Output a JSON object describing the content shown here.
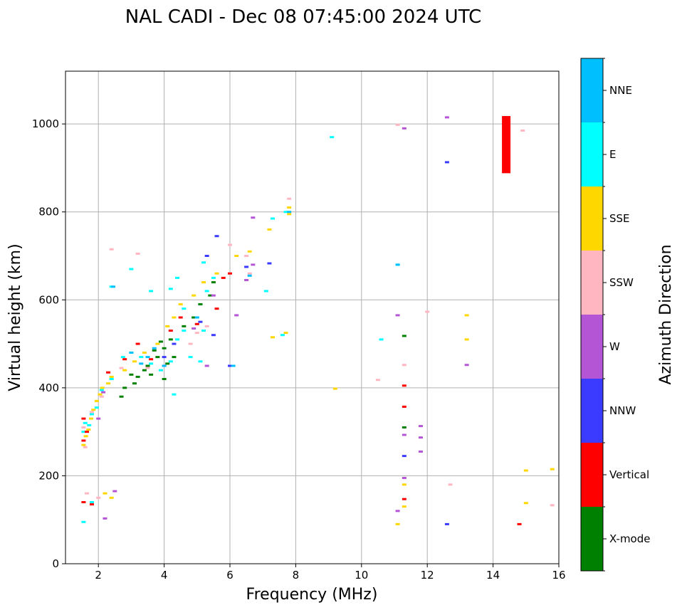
{
  "chart_data": {
    "type": "scatter",
    "title": "NAL CADI - Dec 08 07:45:00 2024 UTC",
    "xlabel": "Frequency (MHz)",
    "ylabel": "Virtual height (km)",
    "xlim": [
      1,
      16
    ],
    "ylim": [
      0,
      1120
    ],
    "xticks": [
      2,
      4,
      6,
      8,
      10,
      12,
      14,
      16
    ],
    "yticks": [
      0,
      200,
      400,
      600,
      800,
      1000
    ],
    "grid": true,
    "colorbar": {
      "label": "Azimuth Direction",
      "categories": [
        {
          "name": "X-mode",
          "color": "#008000"
        },
        {
          "name": "Vertical",
          "color": "#ff0000"
        },
        {
          "name": "NNW",
          "color": "#3b3bff"
        },
        {
          "name": "W",
          "color": "#b455d6"
        },
        {
          "name": "SSW",
          "color": "#ffb6c1"
        },
        {
          "name": "SSE",
          "color": "#ffd700"
        },
        {
          "name": "E",
          "color": "#00ffff"
        },
        {
          "name": "NNE",
          "color": "#00bfff"
        }
      ]
    },
    "clusters": [
      {
        "category": "SSE",
        "points": [
          [
            1.55,
            270
          ],
          [
            1.62,
            290
          ],
          [
            1.7,
            305
          ],
          [
            1.78,
            330
          ],
          [
            1.85,
            350
          ],
          [
            1.95,
            370
          ],
          [
            2.05,
            385
          ],
          [
            2.12,
            400
          ],
          [
            2.3,
            410
          ],
          [
            2.4,
            425
          ],
          [
            2.8,
            440
          ],
          [
            3.1,
            460
          ],
          [
            3.4,
            480
          ],
          [
            3.8,
            500
          ],
          [
            4.1,
            540
          ],
          [
            4.3,
            560
          ],
          [
            4.5,
            590
          ],
          [
            4.9,
            610
          ],
          [
            5.2,
            640
          ],
          [
            5.6,
            660
          ],
          [
            6.2,
            700
          ],
          [
            6.6,
            710
          ],
          [
            7.2,
            760
          ],
          [
            7.8,
            810
          ],
          [
            7.8,
            795
          ],
          [
            7.7,
            525
          ],
          [
            7.3,
            515
          ],
          [
            2.2,
            160
          ],
          [
            2.4,
            150
          ],
          [
            11.3,
            180
          ],
          [
            11.3,
            130
          ],
          [
            11.1,
            90
          ],
          [
            13.2,
            565
          ],
          [
            13.2,
            510
          ],
          [
            9.2,
            398
          ],
          [
            15.0,
            212
          ],
          [
            15.0,
            138
          ],
          [
            15.8,
            215
          ]
        ]
      },
      {
        "category": "E",
        "points": [
          [
            1.55,
            300
          ],
          [
            1.6,
            320
          ],
          [
            1.72,
            315
          ],
          [
            1.8,
            340
          ],
          [
            1.95,
            355
          ],
          [
            2.1,
            395
          ],
          [
            2.4,
            420
          ],
          [
            2.75,
            470
          ],
          [
            3.0,
            480
          ],
          [
            3.3,
            470
          ],
          [
            3.6,
            455
          ],
          [
            3.9,
            440
          ],
          [
            4.2,
            460
          ],
          [
            4.4,
            510
          ],
          [
            4.6,
            530
          ],
          [
            4.9,
            560
          ],
          [
            5.1,
            590
          ],
          [
            5.3,
            620
          ],
          [
            5.5,
            650
          ],
          [
            5.2,
            685
          ],
          [
            4.6,
            580
          ],
          [
            4.2,
            625
          ],
          [
            4.4,
            650
          ],
          [
            3.6,
            620
          ],
          [
            3.0,
            670
          ],
          [
            2.4,
            630
          ],
          [
            7.7,
            800
          ],
          [
            7.6,
            520
          ],
          [
            7.3,
            785
          ],
          [
            7.1,
            620
          ],
          [
            9.1,
            970
          ],
          [
            11.1,
            680
          ],
          [
            10.6,
            510
          ],
          [
            1.55,
            95
          ],
          [
            1.8,
            140
          ],
          [
            5.1,
            460
          ],
          [
            4.8,
            470
          ],
          [
            5.2,
            530
          ],
          [
            4.3,
            385
          ]
        ]
      },
      {
        "category": "X-mode",
        "points": [
          [
            3.0,
            430
          ],
          [
            3.2,
            425
          ],
          [
            3.4,
            440
          ],
          [
            3.6,
            430
          ],
          [
            3.8,
            470
          ],
          [
            4.0,
            490
          ],
          [
            4.0,
            420
          ],
          [
            4.2,
            510
          ],
          [
            4.3,
            470
          ],
          [
            3.1,
            410
          ],
          [
            2.8,
            400
          ],
          [
            2.7,
            380
          ],
          [
            4.6,
            540
          ],
          [
            4.9,
            560
          ],
          [
            5.1,
            590
          ],
          [
            5.4,
            610
          ],
          [
            5.5,
            640
          ],
          [
            11.3,
            518
          ],
          [
            11.3,
            310
          ],
          [
            3.5,
            450
          ],
          [
            3.9,
            505
          ],
          [
            3.7,
            485
          ],
          [
            4.1,
            455
          ]
        ]
      },
      {
        "category": "Vertical",
        "points": [
          [
            1.55,
            280
          ],
          [
            1.55,
            330
          ],
          [
            1.65,
            300
          ],
          [
            2.3,
            435
          ],
          [
            2.8,
            465
          ],
          [
            3.2,
            500
          ],
          [
            3.6,
            465
          ],
          [
            4.0,
            450
          ],
          [
            4.2,
            530
          ],
          [
            4.5,
            560
          ],
          [
            5.0,
            545
          ],
          [
            5.6,
            580
          ],
          [
            5.8,
            650
          ],
          [
            6.0,
            660
          ],
          [
            11.3,
            405
          ],
          [
            11.3,
            357
          ],
          [
            11.3,
            147
          ],
          [
            14.8,
            90
          ],
          [
            1.55,
            140
          ],
          [
            1.8,
            135
          ]
        ]
      },
      {
        "category": "NNW",
        "points": [
          [
            4.0,
            470
          ],
          [
            4.3,
            500
          ],
          [
            5.1,
            550
          ],
          [
            5.5,
            520
          ],
          [
            6.5,
            675
          ],
          [
            7.2,
            683
          ],
          [
            5.6,
            745
          ],
          [
            11.3,
            245
          ],
          [
            12.6,
            913
          ],
          [
            12.6,
            90
          ],
          [
            6.0,
            450
          ],
          [
            5.3,
            700
          ]
        ]
      },
      {
        "category": "W",
        "points": [
          [
            2.0,
            330
          ],
          [
            2.15,
            390
          ],
          [
            4.9,
            535
          ],
          [
            5.5,
            610
          ],
          [
            6.2,
            565
          ],
          [
            6.5,
            645
          ],
          [
            6.7,
            680
          ],
          [
            6.7,
            787
          ],
          [
            11.1,
            565
          ],
          [
            11.3,
            990
          ],
          [
            12.6,
            1015
          ],
          [
            11.3,
            293
          ],
          [
            11.3,
            195
          ],
          [
            11.8,
            313
          ],
          [
            11.8,
            287
          ],
          [
            11.8,
            255
          ],
          [
            13.2,
            452
          ],
          [
            11.1,
            120
          ],
          [
            5.3,
            450
          ],
          [
            2.2,
            103
          ],
          [
            2.5,
            165
          ]
        ]
      },
      {
        "category": "SSW",
        "points": [
          [
            1.55,
            310
          ],
          [
            1.6,
            265
          ],
          [
            1.8,
            345
          ],
          [
            2.1,
            380
          ],
          [
            2.7,
            445
          ],
          [
            3.5,
            445
          ],
          [
            4.8,
            500
          ],
          [
            5.0,
            525
          ],
          [
            5.3,
            540
          ],
          [
            6.0,
            725
          ],
          [
            6.6,
            660
          ],
          [
            6.5,
            700
          ],
          [
            7.8,
            830
          ],
          [
            12.0,
            573
          ],
          [
            10.5,
            418
          ],
          [
            11.1,
            998
          ],
          [
            12.7,
            180
          ],
          [
            14.9,
            985
          ],
          [
            15.8,
            133
          ],
          [
            2.4,
            715
          ],
          [
            3.2,
            705
          ],
          [
            11.3,
            452
          ],
          [
            1.65,
            160
          ],
          [
            2.0,
            150
          ]
        ]
      },
      {
        "category": "NNE",
        "points": [
          [
            2.45,
            630
          ],
          [
            3.0,
            480
          ],
          [
            3.3,
            455
          ],
          [
            3.5,
            470
          ],
          [
            3.7,
            490
          ],
          [
            4.0,
            450
          ],
          [
            6.1,
            450
          ],
          [
            6.6,
            655
          ],
          [
            7.8,
            800
          ],
          [
            11.1,
            680
          ],
          [
            5.0,
            560
          ]
        ]
      }
    ],
    "bars": [
      {
        "category": "Vertical",
        "x": 14.4,
        "y_from": 888,
        "y_to": 1018
      }
    ]
  }
}
